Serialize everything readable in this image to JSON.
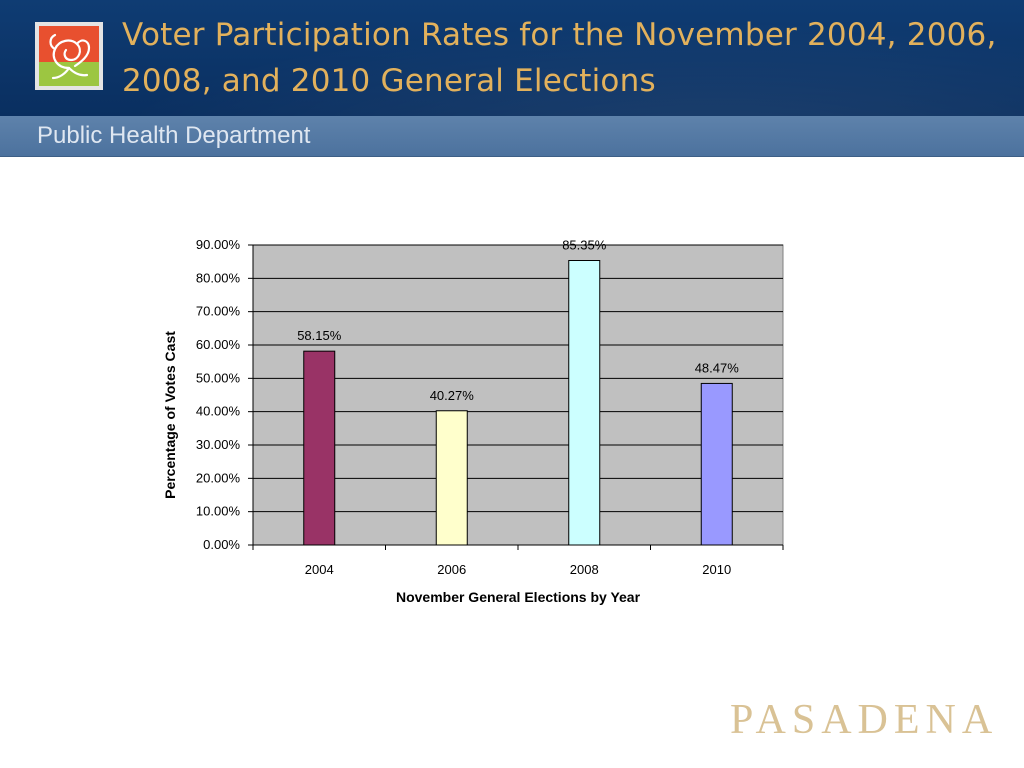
{
  "slide": {
    "title": "Voter Participation Rates for the November 2004, 2006, 2008, and 2010 General Elections",
    "subtitle": "Public Health Department",
    "brand": "PASADENA",
    "logo_icon": "rose-icon"
  },
  "colors": {
    "header": "#0d3668",
    "title": "#e2b15c",
    "subbar": "#557aa5",
    "plot_bg": "#c0c0c0",
    "bar_2004": "#993366",
    "bar_2006": "#ffffcc",
    "bar_2008": "#ccffff",
    "bar_2010": "#9999ff"
  },
  "chart_data": {
    "type": "bar",
    "categories": [
      "2004",
      "2006",
      "2008",
      "2010"
    ],
    "values": [
      58.15,
      40.27,
      85.35,
      48.47
    ],
    "data_labels": [
      "58.15%",
      "40.27%",
      "85.35%",
      "48.47%"
    ],
    "bar_colors": [
      "#993366",
      "#ffffcc",
      "#ccffff",
      "#9999ff"
    ],
    "title": "",
    "xlabel": "November General Elections by Year",
    "ylabel": "Percentage of Votes Cast",
    "ylim": [
      0,
      90
    ],
    "yticks": [
      0,
      10,
      20,
      30,
      40,
      50,
      60,
      70,
      80,
      90
    ],
    "ytick_labels": [
      "0.00%",
      "10.00%",
      "20.00%",
      "30.00%",
      "40.00%",
      "50.00%",
      "60.00%",
      "70.00%",
      "80.00%",
      "90.00%"
    ],
    "grid": true,
    "legend": "none"
  }
}
